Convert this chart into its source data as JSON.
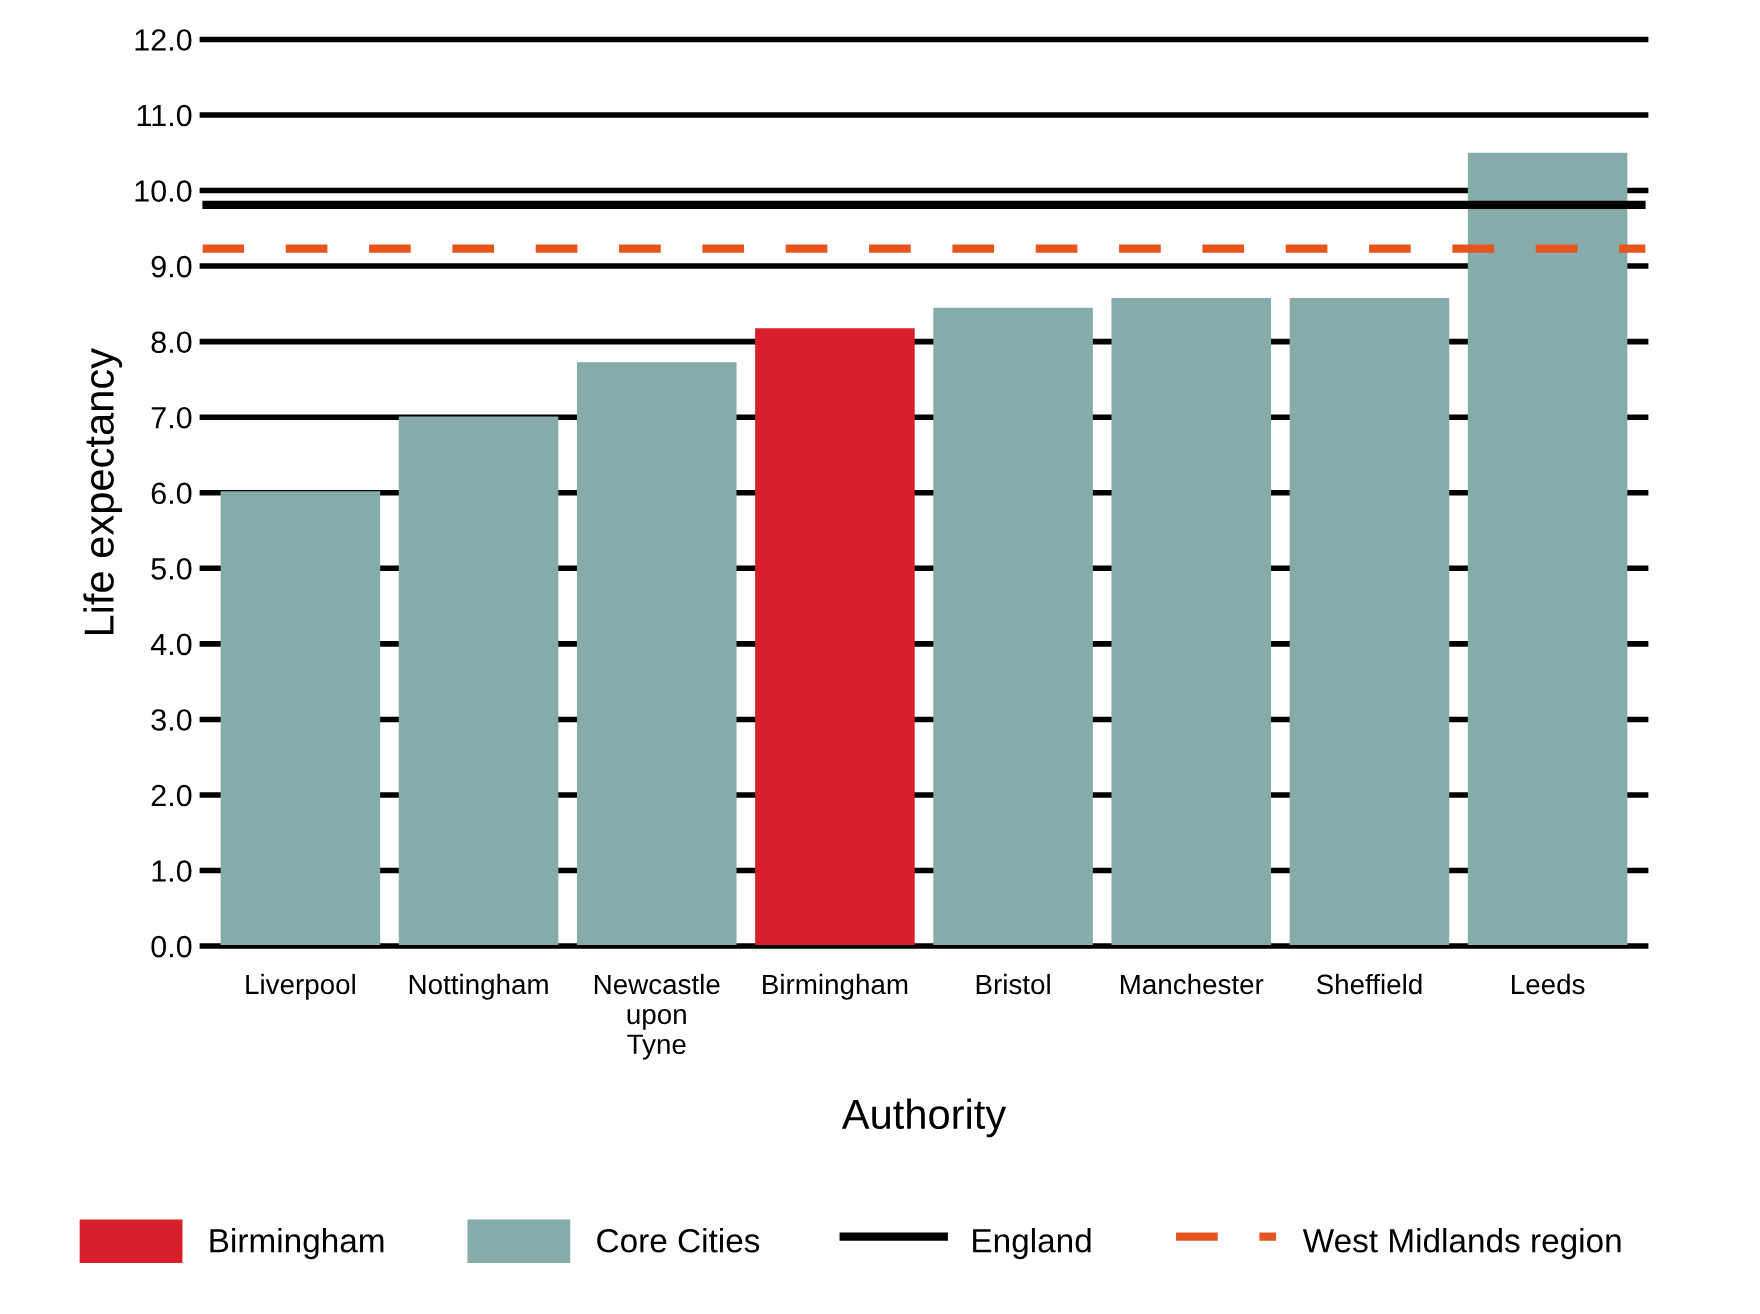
{
  "chart_data": {
    "type": "bar",
    "xlabel": "Authority",
    "ylabel": "Life expectancy",
    "categories": [
      "Liverpool",
      "Nottingham",
      "Newcastle\nupon\nTyne",
      "Birmingham",
      "Bristol",
      "Manchester",
      "Sheffield",
      "Leeds"
    ],
    "series": [
      {
        "name": "Birmingham",
        "color": "#d9202a",
        "values": [
          null,
          null,
          null,
          8.16,
          null,
          null,
          null,
          null
        ]
      },
      {
        "name": "Core Cities",
        "color": "#86abab",
        "values": [
          6.0,
          6.99,
          7.71,
          null,
          8.43,
          8.56,
          8.56,
          10.48
        ]
      }
    ],
    "ref_lines": [
      {
        "axis": "y",
        "value": 9.81,
        "label": "England",
        "color": "#000000",
        "line_style": "solid"
      },
      {
        "axis": "y",
        "value": 9.23,
        "label": "West Midlands region",
        "color": "#e8541e",
        "line_style": "dashed"
      }
    ],
    "ylim": [
      0,
      12
    ],
    "yticks": [
      {
        "value": 0,
        "label": "0.0"
      },
      {
        "value": 1,
        "label": "1.0"
      },
      {
        "value": 2,
        "label": "2.0"
      },
      {
        "value": 3,
        "label": "3.0"
      },
      {
        "value": 4,
        "label": "4.0"
      },
      {
        "value": 5,
        "label": "5.0"
      },
      {
        "value": 6,
        "label": "6.0"
      },
      {
        "value": 7,
        "label": "7.0"
      },
      {
        "value": 8,
        "label": "8.0"
      },
      {
        "value": 9,
        "label": "9.0"
      },
      {
        "value": 10,
        "label": "10.0"
      },
      {
        "value": 11,
        "label": "11.0"
      },
      {
        "value": 12,
        "label": "12.0"
      }
    ],
    "grid": "y",
    "legend": "bottom"
  }
}
